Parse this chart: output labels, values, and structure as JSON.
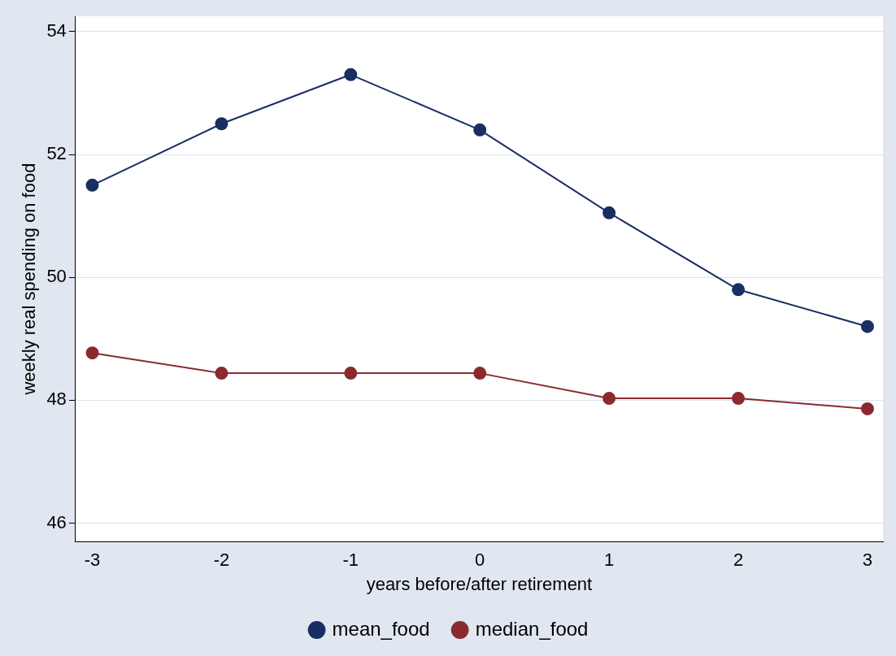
{
  "chart_data": {
    "type": "line",
    "xlabel": "years before/after retirement",
    "ylabel": "weekly real spending on food",
    "x": [
      -3,
      -2,
      -1,
      0,
      1,
      2,
      3
    ],
    "series": [
      {
        "name": "mean_food",
        "color": "#1a2e63",
        "values": [
          51.5,
          52.5,
          53.3,
          52.4,
          51.05,
          49.8,
          49.2
        ]
      },
      {
        "name": "median_food",
        "color": "#8b2a2e",
        "values": [
          48.77,
          48.44,
          48.44,
          48.44,
          48.03,
          48.03,
          47.86
        ]
      }
    ],
    "xlim": [
      -3.13,
      3.12
    ],
    "xticks": [
      -3,
      -2,
      -1,
      0,
      1,
      2,
      3
    ],
    "ylim": [
      45.7,
      54.25
    ],
    "yticks": [
      46,
      48,
      50,
      52,
      54
    ],
    "grid": "y",
    "legend": "bottom",
    "marker": "circle",
    "line_style": "solid"
  }
}
